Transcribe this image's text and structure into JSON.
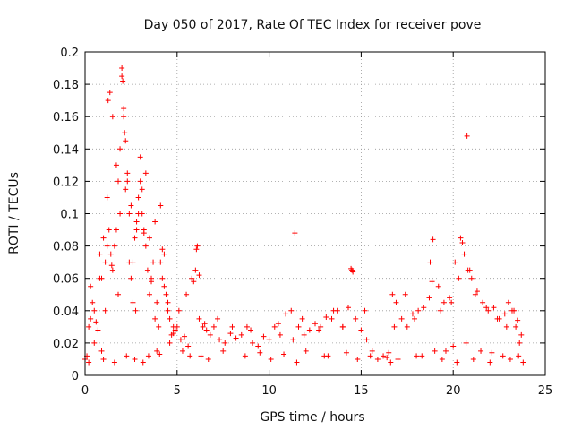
{
  "chart_data": {
    "type": "scatter",
    "title": "Day 050 of 2017, Rate Of TEC Index for receiver pove",
    "xlabel": "GPS time / hours",
    "ylabel": "ROTI / TECUs",
    "xlim": [
      0,
      25
    ],
    "ylim": [
      0,
      0.2
    ],
    "grid": true,
    "marker": "+",
    "color": "#ff0000",
    "xticks": [
      0,
      5,
      10,
      15,
      20,
      25
    ],
    "yticks": [
      0,
      0.02,
      0.04,
      0.06,
      0.08,
      0.1,
      0.12,
      0.14,
      0.16,
      0.18,
      0.2
    ],
    "xtick_labels": [
      "0",
      "5",
      "10",
      "15",
      "20",
      "25"
    ],
    "ytick_labels": [
      "0",
      "0.02",
      "0.04",
      "0.06",
      "0.08",
      "0.1",
      "0.12",
      "0.14",
      "0.16",
      "0.18",
      "0.2"
    ],
    "series": [
      {
        "name": "ROTI",
        "x": [
          0.0,
          0.1,
          0.2,
          0.3,
          0.4,
          0.5,
          0.6,
          0.7,
          0.8,
          0.9,
          1.0,
          1.1,
          1.2,
          1.3,
          1.4,
          1.5,
          1.6,
          1.7,
          1.8,
          1.9,
          2.0,
          2.1,
          2.2,
          2.3,
          2.4,
          2.5,
          2.6,
          2.7,
          2.8,
          2.9,
          3.0,
          3.1,
          3.2,
          3.3,
          3.4,
          3.5,
          3.6,
          3.7,
          3.8,
          3.9,
          4.0,
          4.1,
          4.2,
          4.3,
          4.4,
          4.5,
          4.6,
          4.7,
          4.8,
          4.9,
          5.0,
          5.2,
          5.4,
          5.6,
          5.8,
          6.0,
          6.1,
          6.2,
          6.4,
          6.6,
          6.8,
          7.0,
          7.3,
          7.6,
          7.9,
          8.2,
          8.5,
          8.8,
          9.1,
          9.4,
          9.7,
          10.0,
          10.3,
          10.6,
          10.9,
          11.2,
          11.4,
          11.6,
          11.9,
          12.2,
          12.5,
          12.8,
          13.1,
          13.4,
          13.7,
          14.0,
          14.3,
          14.5,
          14.7,
          15.0,
          15.3,
          15.6,
          15.9,
          16.2,
          16.5,
          16.7,
          16.9,
          17.2,
          17.5,
          17.8,
          18.1,
          18.4,
          18.7,
          18.9,
          19.2,
          19.5,
          19.8,
          20.1,
          20.4,
          20.6,
          20.8,
          21.0,
          21.3,
          21.6,
          21.9,
          22.2,
          22.5,
          22.8,
          23.0,
          23.2,
          23.4,
          23.6,
          0.2,
          0.5,
          0.9,
          1.1,
          1.25,
          1.35,
          1.5,
          1.7,
          1.9,
          2.0,
          2.05,
          2.1,
          2.15,
          2.2,
          2.3,
          2.5,
          2.8,
          2.9,
          3.0,
          3.1,
          3.3,
          3.5,
          3.8,
          4.1,
          4.3,
          4.5,
          5.1,
          5.5,
          5.9,
          6.05,
          6.2,
          6.5,
          7.2,
          8.0,
          9.0,
          10.5,
          11.3,
          11.8,
          12.7,
          13.5,
          14.0,
          14.45,
          14.55,
          15.2,
          16.8,
          17.4,
          17.9,
          18.75,
          18.85,
          19.3,
          19.9,
          20.3,
          20.5,
          20.75,
          20.9,
          21.2,
          21.8,
          22.4,
          22.9,
          23.3,
          23.5,
          23.7,
          0.3,
          0.8,
          1.2,
          1.45,
          1.8,
          2.4,
          2.6,
          2.75,
          3.2,
          3.6,
          4.2,
          4.8,
          5.3,
          6.3,
          7.5,
          9.5,
          10.8,
          12.0,
          13.0,
          14.2,
          15.5,
          16.4,
          17.0,
          18.0,
          19.0,
          19.6,
          20.0,
          20.7,
          21.5,
          22.1,
          22.7,
          23.1,
          23.55,
          1.0,
          1.6,
          2.25,
          2.7,
          3.15,
          3.45,
          3.9,
          4.05,
          4.6,
          5.7,
          6.7,
          8.7,
          10.1,
          11.5,
          13.2,
          14.8,
          16.6,
          18.3,
          19.4,
          20.2,
          21.1,
          22.0,
          23.8
        ],
        "y": [
          0.01,
          0.012,
          0.03,
          0.055,
          0.045,
          0.04,
          0.033,
          0.028,
          0.075,
          0.06,
          0.085,
          0.07,
          0.11,
          0.09,
          0.075,
          0.065,
          0.08,
          0.09,
          0.12,
          0.1,
          0.185,
          0.16,
          0.115,
          0.12,
          0.1,
          0.06,
          0.07,
          0.085,
          0.095,
          0.11,
          0.12,
          0.1,
          0.09,
          0.08,
          0.065,
          0.05,
          0.06,
          0.07,
          0.035,
          0.045,
          0.03,
          0.105,
          0.06,
          0.075,
          0.05,
          0.04,
          0.035,
          0.025,
          0.03,
          0.028,
          0.03,
          0.022,
          0.024,
          0.018,
          0.06,
          0.065,
          0.08,
          0.035,
          0.03,
          0.028,
          0.025,
          0.03,
          0.022,
          0.02,
          0.026,
          0.023,
          0.025,
          0.03,
          0.02,
          0.018,
          0.024,
          0.022,
          0.03,
          0.025,
          0.038,
          0.04,
          0.088,
          0.03,
          0.025,
          0.028,
          0.032,
          0.03,
          0.036,
          0.035,
          0.04,
          0.03,
          0.042,
          0.065,
          0.035,
          0.028,
          0.022,
          0.015,
          0.01,
          0.012,
          0.014,
          0.05,
          0.045,
          0.035,
          0.03,
          0.038,
          0.04,
          0.042,
          0.048,
          0.084,
          0.055,
          0.045,
          0.048,
          0.07,
          0.085,
          0.075,
          0.065,
          0.06,
          0.052,
          0.045,
          0.04,
          0.042,
          0.035,
          0.038,
          0.045,
          0.04,
          0.03,
          0.02,
          0.008,
          0.02,
          0.015,
          0.04,
          0.17,
          0.175,
          0.16,
          0.13,
          0.14,
          0.19,
          0.182,
          0.165,
          0.15,
          0.145,
          0.125,
          0.105,
          0.09,
          0.1,
          0.135,
          0.115,
          0.125,
          0.085,
          0.095,
          0.07,
          0.055,
          0.045,
          0.04,
          0.05,
          0.058,
          0.078,
          0.062,
          0.032,
          0.035,
          0.03,
          0.028,
          0.032,
          0.022,
          0.035,
          0.028,
          0.04,
          0.03,
          0.066,
          0.064,
          0.04,
          0.03,
          0.05,
          0.035,
          0.07,
          0.058,
          0.04,
          0.045,
          0.06,
          0.082,
          0.148,
          0.065,
          0.05,
          0.042,
          0.035,
          0.03,
          0.04,
          0.034,
          0.025,
          0.035,
          0.06,
          0.08,
          0.068,
          0.05,
          0.07,
          0.045,
          0.04,
          0.088,
          0.058,
          0.078,
          0.026,
          0.015,
          0.012,
          0.015,
          0.014,
          0.013,
          0.015,
          0.012,
          0.014,
          0.012,
          0.011,
          0.01,
          0.012,
          0.015,
          0.015,
          0.018,
          0.02,
          0.015,
          0.014,
          0.012,
          0.01,
          0.012,
          0.01,
          0.008,
          0.012,
          0.01,
          0.008,
          0.012,
          0.015,
          0.013,
          0.02,
          0.012,
          0.01,
          0.012,
          0.01,
          0.008,
          0.012,
          0.01,
          0.008,
          0.012,
          0.01,
          0.008,
          0.01,
          0.008,
          0.008
        ]
      }
    ]
  }
}
